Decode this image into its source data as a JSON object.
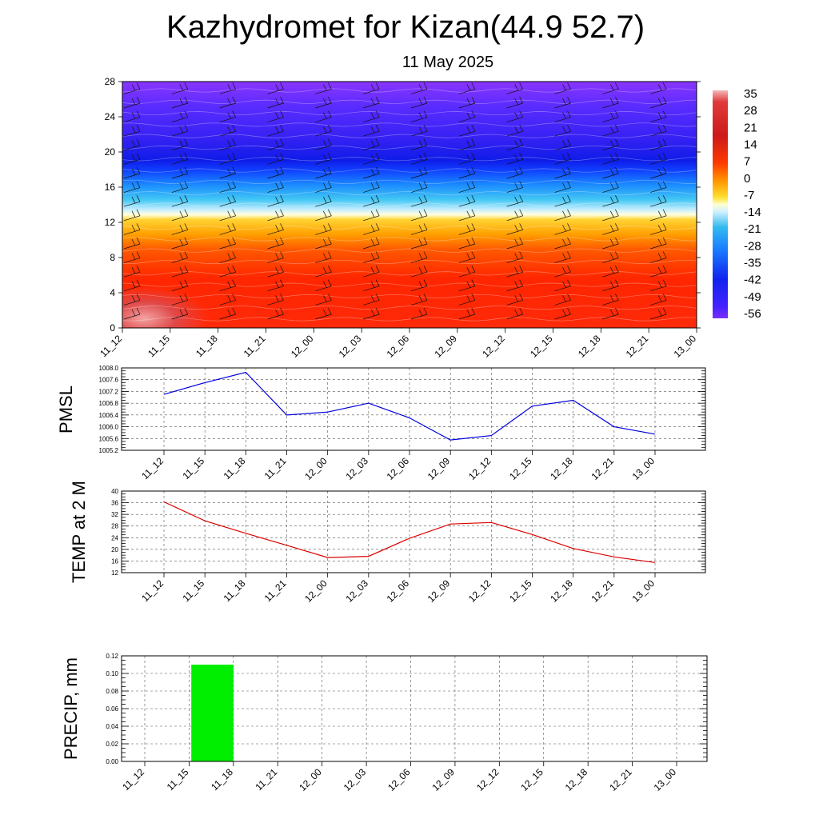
{
  "header": {
    "title": "Kazhydromet for Kizan(44.9 52.7)",
    "date": "11 May 2025"
  },
  "time_labels": [
    "11_12",
    "11_15",
    "11_18",
    "11_21",
    "12_00",
    "12_03",
    "12_06",
    "12_09",
    "12_12",
    "12_15",
    "12_18",
    "12_21",
    "13_00"
  ],
  "colors": {
    "pmsl_line": "#0000dd",
    "temp_line": "#dd0000",
    "precip_bar": "#00ee00"
  },
  "chart_data": [
    {
      "type": "heatmap",
      "name": "vertical-profile",
      "x_categories": [
        "11_12",
        "11_15",
        "11_18",
        "11_21",
        "12_00",
        "12_03",
        "12_06",
        "12_09",
        "12_12",
        "12_15",
        "12_18",
        "12_21",
        "13_00"
      ],
      "y_ticks": [
        0,
        4,
        8,
        12,
        16,
        20,
        24,
        28
      ],
      "ylim": [
        0,
        28
      ],
      "colorbar": {
        "labels": [
          "35",
          "28",
          "21",
          "14",
          "7",
          "0",
          "-7",
          "-14",
          "-21",
          "-28",
          "-35",
          "-42",
          "-49",
          "-56"
        ],
        "range": [
          -63,
          42
        ]
      },
      "temperature_profile": [
        {
          "height": 0,
          "value": 30
        },
        {
          "height": 4,
          "value": 26
        },
        {
          "height": 8,
          "value": 22
        },
        {
          "height": 10,
          "value": 15
        },
        {
          "height": 12.5,
          "value": 2
        },
        {
          "height": 13,
          "value": -12
        },
        {
          "height": 15,
          "value": -22
        },
        {
          "height": 17,
          "value": -38
        },
        {
          "height": 19,
          "value": -58
        },
        {
          "height": 21,
          "value": -56
        },
        {
          "height": 24,
          "value": -52
        },
        {
          "height": 28,
          "value": -50
        }
      ],
      "wind_barbs": "shown"
    },
    {
      "type": "line",
      "name": "pmsl",
      "ylabel": "PMSL",
      "categories": [
        "11_12",
        "11_15",
        "11_18",
        "11_21",
        "12_00",
        "12_03",
        "12_06",
        "12_09",
        "12_12",
        "12_15",
        "12_18",
        "12_21",
        "13_00"
      ],
      "values": [
        1007.1,
        1007.5,
        1007.85,
        1006.4,
        1006.5,
        1006.8,
        1006.3,
        1005.55,
        1005.7,
        1006.7,
        1006.9,
        1006.0,
        1005.75
      ],
      "y_ticks": [
        "1005.2",
        "1005.6",
        "1006.0",
        "1006.4",
        "1006.8",
        "1007.2",
        "1007.6",
        "1008.0"
      ],
      "ylim": [
        1005.2,
        1008.0
      ],
      "grid": true
    },
    {
      "type": "line",
      "name": "temp2m",
      "ylabel": "TEMP at 2 M",
      "categories": [
        "11_12",
        "11_15",
        "11_18",
        "11_21",
        "12_00",
        "12_03",
        "12_06",
        "12_09",
        "12_12",
        "12_15",
        "12_18",
        "12_21",
        "13_00"
      ],
      "values": [
        36.3,
        29.8,
        25.5,
        21.4,
        17.2,
        17.6,
        23.8,
        28.7,
        29.2,
        25.1,
        20.3,
        17.4,
        15.5
      ],
      "y_ticks": [
        "12",
        "16",
        "20",
        "24",
        "28",
        "32",
        "36",
        "40"
      ],
      "ylim": [
        12,
        40
      ],
      "grid": true
    },
    {
      "type": "bar",
      "name": "precip",
      "ylabel": "PRECIP, mm",
      "categories": [
        "11_12",
        "11_15",
        "11_18",
        "11_21",
        "12_00",
        "12_03",
        "12_06",
        "12_09",
        "12_12",
        "12_15",
        "12_18",
        "12_21",
        "13_00"
      ],
      "values": [
        0,
        0.11,
        0,
        0,
        0,
        0,
        0,
        0,
        0,
        0,
        0,
        0,
        0
      ],
      "y_ticks": [
        "0.00",
        "0.02",
        "0.04",
        "0.06",
        "0.08",
        "0.10",
        "0.12"
      ],
      "ylim": [
        0,
        0.12
      ],
      "grid": true
    }
  ]
}
